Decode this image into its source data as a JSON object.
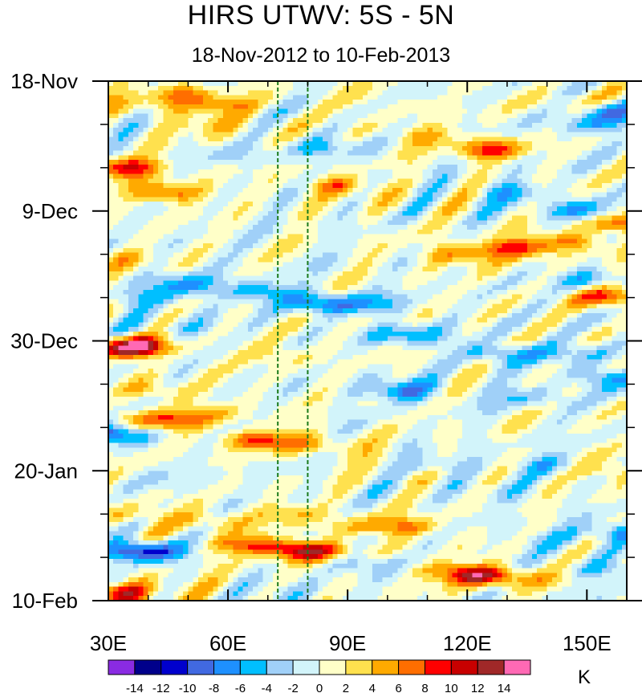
{
  "chart_data": {
    "type": "heatmap",
    "title": "HIRS UTWV: 5S - 5N",
    "subtitle": "18-Nov-2012 to 10-Feb-2013",
    "x_axis": {
      "range": [
        30,
        160
      ],
      "ticks": [
        30,
        60,
        90,
        120,
        150
      ],
      "tick_labels": [
        "30E",
        "60E",
        "90E",
        "120E",
        "150E"
      ]
    },
    "y_axis": {
      "range_days": [
        0,
        84
      ],
      "ticks_days": [
        0,
        21,
        42,
        63,
        84
      ],
      "tick_labels": [
        "18-Nov",
        "9-Dec",
        "30-Dec",
        "20-Jan",
        "10-Feb"
      ]
    },
    "reference_lines_lon": [
      72.5,
      80
    ],
    "units": "K",
    "colorbar": {
      "levels": [
        -14,
        -12,
        -10,
        -8,
        -6,
        -4,
        -2,
        0,
        2,
        4,
        6,
        8,
        10,
        12,
        14
      ],
      "level_labels": [
        "-14",
        "-12",
        "-10",
        "-8",
        "-6",
        "-4",
        "-2",
        "0",
        "2",
        "4",
        "6",
        "8",
        "10",
        "12",
        "14"
      ],
      "colors": [
        "#8a2be2",
        "#00008b",
        "#0000cd",
        "#4169e1",
        "#1e90ff",
        "#00bfff",
        "#a0d0f8",
        "#d2f4fa",
        "#ffffc8",
        "#ffe14e",
        "#ffaa00",
        "#ff6e00",
        "#ff0000",
        "#c80000",
        "#a02828",
        "#ff69b4"
      ]
    },
    "anomaly_features": [
      {
        "lon": 36,
        "day": 4,
        "value": 3
      },
      {
        "lon": 47,
        "day": 2,
        "value": 6
      },
      {
        "lon": 58,
        "day": 4,
        "value": 6
      },
      {
        "lon": 55,
        "day": 7,
        "value": 4
      },
      {
        "lon": 95,
        "day": 3,
        "value": 2
      },
      {
        "lon": 140,
        "day": 3,
        "value": 2
      },
      {
        "lon": 110,
        "day": 9,
        "value": 4
      },
      {
        "lon": 125,
        "day": 11,
        "value": 8
      },
      {
        "lon": 150,
        "day": 7,
        "value": -4
      },
      {
        "lon": 156,
        "day": 5,
        "value": -6
      },
      {
        "lon": 85,
        "day": 11,
        "value": -4
      },
      {
        "lon": 62,
        "day": 12,
        "value": -2
      },
      {
        "lon": 34,
        "day": 14,
        "value": 10
      },
      {
        "lon": 45,
        "day": 18,
        "value": 8
      },
      {
        "lon": 88,
        "day": 17,
        "value": 6
      },
      {
        "lon": 130,
        "day": 18,
        "value": -4
      },
      {
        "lon": 148,
        "day": 21,
        "value": -6
      },
      {
        "lon": 160,
        "day": 23,
        "value": 8
      },
      {
        "lon": 132,
        "day": 27,
        "value": 8
      },
      {
        "lon": 118,
        "day": 28,
        "value": 6
      },
      {
        "lon": 145,
        "day": 26,
        "value": 6
      },
      {
        "lon": 150,
        "day": 32,
        "value": -4
      },
      {
        "lon": 156,
        "day": 35,
        "value": 8
      },
      {
        "lon": 50,
        "day": 33,
        "value": -6
      },
      {
        "lon": 68,
        "day": 34,
        "value": -6
      },
      {
        "lon": 84,
        "day": 36,
        "value": -8
      },
      {
        "lon": 98,
        "day": 36,
        "value": -4
      },
      {
        "lon": 40,
        "day": 35,
        "value": -4
      },
      {
        "lon": 32,
        "day": 29,
        "value": 3
      },
      {
        "lon": 38,
        "day": 43,
        "value": 10
      },
      {
        "lon": 30,
        "day": 43,
        "value": 8
      },
      {
        "lon": 50,
        "day": 40,
        "value": -3
      },
      {
        "lon": 72,
        "day": 44,
        "value": 3
      },
      {
        "lon": 105,
        "day": 41,
        "value": -6
      },
      {
        "lon": 128,
        "day": 44,
        "value": -6
      },
      {
        "lon": 146,
        "day": 44,
        "value": -4
      },
      {
        "lon": 104,
        "day": 50,
        "value": -8
      },
      {
        "lon": 135,
        "day": 51,
        "value": -4
      },
      {
        "lon": 155,
        "day": 48,
        "value": -6
      },
      {
        "lon": 42,
        "day": 50,
        "value": 4
      },
      {
        "lon": 44,
        "day": 55,
        "value": 8
      },
      {
        "lon": 68,
        "day": 58,
        "value": 8
      },
      {
        "lon": 82,
        "day": 59,
        "value": 4
      },
      {
        "lon": 30,
        "day": 57,
        "value": -10
      },
      {
        "lon": 55,
        "day": 54,
        "value": 4
      },
      {
        "lon": 100,
        "day": 61,
        "value": 2
      },
      {
        "lon": 112,
        "day": 62,
        "value": -4
      },
      {
        "lon": 140,
        "day": 62,
        "value": -4
      },
      {
        "lon": 155,
        "day": 63,
        "value": 4
      },
      {
        "lon": 50,
        "day": 65,
        "value": -2
      },
      {
        "lon": 130,
        "day": 67,
        "value": -2
      },
      {
        "lon": 35,
        "day": 70,
        "value": 4
      },
      {
        "lon": 55,
        "day": 71,
        "value": 4
      },
      {
        "lon": 75,
        "day": 70,
        "value": 4
      },
      {
        "lon": 92,
        "day": 72,
        "value": 3
      },
      {
        "lon": 104,
        "day": 72,
        "value": 6
      },
      {
        "lon": 140,
        "day": 74,
        "value": -3
      },
      {
        "lon": 158,
        "day": 73,
        "value": -6
      },
      {
        "lon": 38,
        "day": 76,
        "value": -12
      },
      {
        "lon": 66,
        "day": 75,
        "value": 8
      },
      {
        "lon": 80,
        "day": 76,
        "value": 12
      },
      {
        "lon": 95,
        "day": 78,
        "value": -4
      },
      {
        "lon": 124,
        "day": 80,
        "value": 12
      },
      {
        "lon": 112,
        "day": 79,
        "value": 4
      },
      {
        "lon": 140,
        "day": 81,
        "value": 2
      },
      {
        "lon": 155,
        "day": 79,
        "value": -4
      },
      {
        "lon": 34,
        "day": 83,
        "value": 10
      },
      {
        "lon": 52,
        "day": 82,
        "value": 2
      },
      {
        "lon": 75,
        "day": 83,
        "value": -3
      }
    ]
  }
}
